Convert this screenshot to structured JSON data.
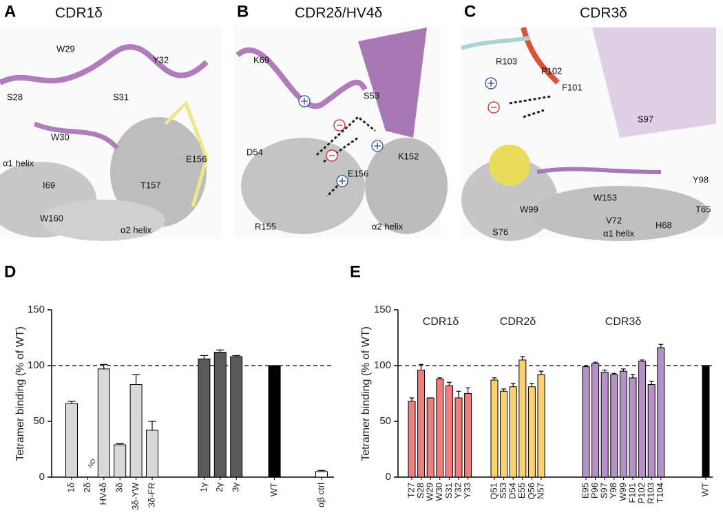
{
  "panels": [
    {
      "letter": "A",
      "title": "CDR1δ",
      "labels": [
        "W29",
        "Y32",
        "S28",
        "S31",
        "W30",
        "α1 helix",
        "I69",
        "E156",
        "T157",
        "W160",
        "α2 helix"
      ]
    },
    {
      "letter": "B",
      "title": "CDR2δ/HV4δ",
      "labels": [
        "K69",
        "S53",
        "D54",
        "K152",
        "E156",
        "R155",
        "α2 helix"
      ]
    },
    {
      "letter": "C",
      "title": "CDR3δ",
      "labels": [
        "R103",
        "P102",
        "F101",
        "S97",
        "Y98",
        "W99",
        "W153",
        "T65",
        "H68",
        "V72",
        "S76",
        "α1 helix"
      ]
    }
  ],
  "chart_data": [
    {
      "type": "bar",
      "letter": "D",
      "ylabel": "Tetramer binding (% of WT)",
      "categories": [
        "1δ",
        "2δ",
        "HV4δ",
        "3δ",
        "3δ-YW",
        "3δ-FR",
        "1γ",
        "2γ",
        "3γ",
        "WT",
        "αβ ctrl"
      ],
      "values": [
        66,
        null,
        97,
        29,
        83,
        42,
        106,
        112,
        108,
        100,
        5
      ],
      "value_labels": [
        null,
        "ND",
        null,
        null,
        null,
        null,
        null,
        null,
        null,
        null,
        null
      ],
      "errors": [
        2,
        null,
        4,
        1,
        9,
        8,
        3,
        2,
        1,
        0,
        1
      ],
      "colors": [
        "#d9d9d9",
        "#d9d9d9",
        "#d9d9d9",
        "#d9d9d9",
        "#d9d9d9",
        "#d9d9d9",
        "#5a5a5a",
        "#5a5a5a",
        "#5a5a5a",
        "#000000",
        "#ffffff"
      ],
      "ylim": [
        0,
        150
      ],
      "yticks": [
        0,
        50,
        100,
        150
      ],
      "reference_line": 100
    },
    {
      "type": "bar",
      "letter": "E",
      "ylabel": "Tetramer binding (% of WT)",
      "group_labels": [
        "CDR1δ",
        "CDR2δ",
        "CDR3δ"
      ],
      "categories": [
        "T27",
        "S28",
        "W29",
        "W30",
        "S31",
        "Y32",
        "Y33",
        "Q51",
        "S53",
        "D54",
        "E55",
        "Q56",
        "N57",
        "E95",
        "P96",
        "S97",
        "Y98",
        "W99",
        "F101",
        "P102",
        "R103",
        "T104",
        "WT"
      ],
      "values": [
        68,
        96,
        71,
        88,
        82,
        71,
        75,
        87,
        77,
        81,
        105,
        81,
        92,
        99,
        102,
        94,
        92,
        95,
        89,
        104,
        83,
        116,
        100
      ],
      "errors": [
        3,
        5,
        0,
        1,
        3,
        6,
        5,
        2,
        2,
        3,
        3,
        3,
        3,
        1,
        1,
        2,
        1,
        2,
        3,
        1,
        3,
        3,
        0
      ],
      "colors": [
        "#f07d7d",
        "#f07d7d",
        "#f07d7d",
        "#f07d7d",
        "#f07d7d",
        "#f07d7d",
        "#f07d7d",
        "#fbd173",
        "#fbd173",
        "#fbd173",
        "#fbd173",
        "#fbd173",
        "#fbd173",
        "#b592c5",
        "#b592c5",
        "#b592c5",
        "#b592c5",
        "#b592c5",
        "#b592c5",
        "#b592c5",
        "#b592c5",
        "#b592c5",
        "#000000"
      ],
      "ylim": [
        0,
        150
      ],
      "yticks": [
        0,
        50,
        100,
        150
      ],
      "reference_line": 100
    }
  ]
}
